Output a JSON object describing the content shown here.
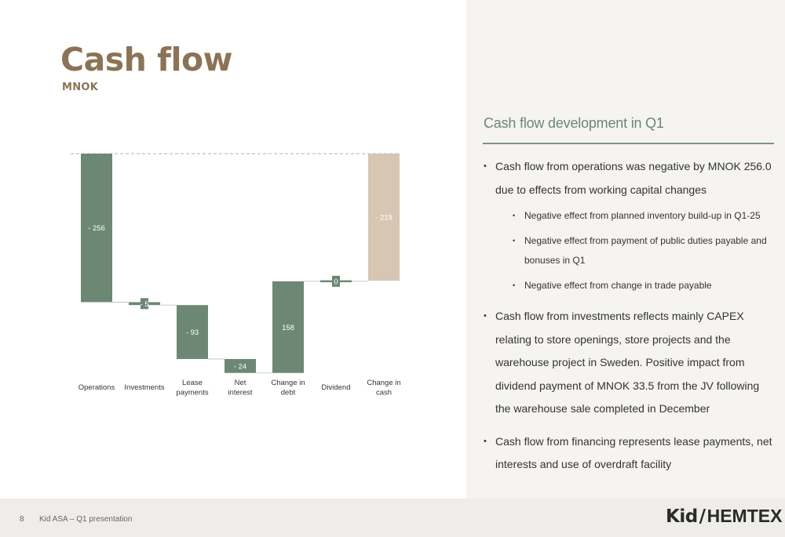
{
  "header": {
    "title": "Cash flow",
    "subtitle": "MNOK"
  },
  "chart_data": {
    "type": "bar",
    "subtype": "waterfall",
    "categories": [
      "Operations",
      "Investments",
      "Lease\npayments",
      "Net\ninterest",
      "Change in\ndebt",
      "Dividend",
      "Change in\ncash"
    ],
    "values": [
      -256,
      -5,
      -93,
      -24,
      158,
      0,
      -219
    ],
    "data_labels": [
      "- 256",
      "- 5",
      "- 93",
      "- 24",
      "158",
      "0",
      "- 219"
    ],
    "total_index": 6,
    "colors": {
      "change": "#6d8775",
      "total": "#d6c6b2",
      "connector": "#bdbdbd",
      "baseline": "#999999"
    }
  },
  "panel": {
    "heading": "Cash flow development in Q1",
    "bullets": [
      {
        "level": 1,
        "text": "Cash flow from operations was negative by MNOK 256.0 due to effects from working capital changes"
      },
      {
        "level": 2,
        "text": "Negative effect from planned inventory build-up in Q1-25"
      },
      {
        "level": 2,
        "text": "Negative effect from payment of public duties payable and bonuses in Q1"
      },
      {
        "level": 2,
        "text": "Negative effect from change in trade payable"
      },
      {
        "level": 1,
        "text": "Cash flow from investments reflects mainly CAPEX relating to store openings, store projects and the warehouse project in Sweden. Positive impact from dividend payment of MNOK 33.5 from the JV following the warehouse sale completed in December"
      },
      {
        "level": 1,
        "text": "Cash flow from financing represents lease payments, net interests and use of overdraft facility"
      }
    ]
  },
  "footer": {
    "page_number": "8",
    "text": "Kid ASA – Q1 presentation"
  },
  "logo": {
    "part1": "Kid",
    "part2": "HEMTEX"
  }
}
